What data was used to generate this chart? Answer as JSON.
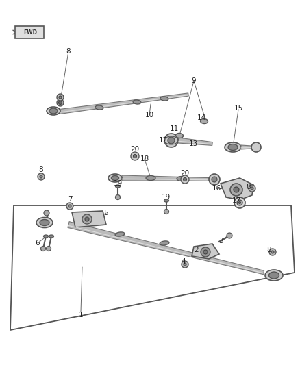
{
  "bg_color": "#ffffff",
  "part_color": "#666666",
  "dark_color": "#333333",
  "light_color": "#cccccc",
  "mid_color": "#999999",
  "label_color": "#222222",
  "figsize": [
    4.38,
    5.33
  ],
  "dpi": 100,
  "labels": [
    [
      "8",
      100,
      75
    ],
    [
      "10",
      218,
      168
    ],
    [
      "9",
      283,
      118
    ],
    [
      "11",
      254,
      188
    ],
    [
      "14",
      294,
      172
    ],
    [
      "12",
      238,
      205
    ],
    [
      "13",
      282,
      210
    ],
    [
      "15",
      348,
      158
    ],
    [
      "20",
      197,
      218
    ],
    [
      "18",
      211,
      232
    ],
    [
      "20",
      270,
      253
    ],
    [
      "19",
      172,
      268
    ],
    [
      "19",
      242,
      288
    ],
    [
      "16",
      316,
      275
    ],
    [
      "8",
      363,
      273
    ],
    [
      "17",
      345,
      293
    ],
    [
      "8",
      60,
      248
    ],
    [
      "7",
      102,
      291
    ],
    [
      "5",
      155,
      311
    ],
    [
      "6",
      55,
      355
    ],
    [
      "1",
      118,
      460
    ],
    [
      "2",
      287,
      365
    ],
    [
      "3",
      322,
      352
    ],
    [
      "4",
      268,
      382
    ],
    [
      "8",
      393,
      365
    ]
  ]
}
